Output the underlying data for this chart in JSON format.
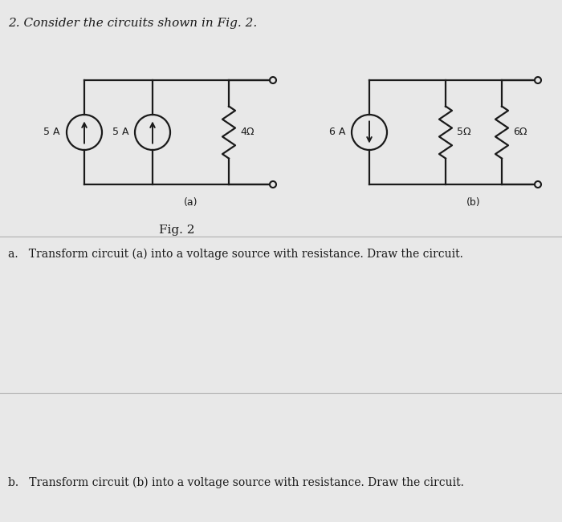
{
  "bg_color": "#e8e8e8",
  "paper_color": "#e0e0e0",
  "black": "#1a1a1a",
  "title": "2. Consider the circuits shown in Fig. 2.",
  "fig2_label": "Fig. 2",
  "circuit_a_label": "(a)",
  "circuit_b_label": "(b)",
  "question_a": "a.   Transform circuit (a) into a voltage source with resistance. Draw the circuit.",
  "question_b": "b.   Transform circuit (b) into a voltage source with resistance. Draw the circuit.",
  "cs1_label": "5 A",
  "cs2_label": "5 A",
  "cs3_label": "6 A",
  "r1_label": "4Ω",
  "r2_label": "5Ω",
  "r3_label": "6Ω",
  "title_fontsize": 11,
  "label_fontsize": 9,
  "question_fontsize": 10,
  "fig_label_fontsize": 11
}
